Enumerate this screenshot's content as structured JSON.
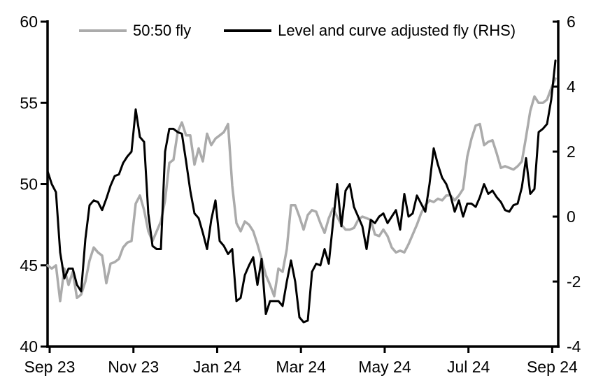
{
  "legend": {
    "series1": {
      "label": "50:50 fly"
    },
    "series2": {
      "label": "Level and curve adjusted fly (RHS)"
    }
  },
  "colors": {
    "background": "#ffffff",
    "axis": "#000000",
    "gray_series": "#ababab",
    "black_series": "#000000",
    "text": "#000000"
  },
  "chart_data": {
    "type": "line",
    "title": "",
    "xlabel": "",
    "ylabel_left": "",
    "ylabel_right": "",
    "grid": false,
    "legend_position": "top",
    "x_tick_labels": [
      "Sep 23",
      "Nov 23",
      "Jan 24",
      "Mar 24",
      "May 24",
      "Jul 24",
      "Sep 24"
    ],
    "left_axis": {
      "range": [
        40,
        60
      ],
      "ticks": [
        60,
        55,
        50,
        45,
        40
      ],
      "tick_labels": [
        "60",
        "55",
        "50",
        "45",
        "40"
      ]
    },
    "right_axis": {
      "range": [
        -4,
        6
      ],
      "ticks": [
        6,
        4,
        2,
        0,
        -2,
        -4
      ],
      "tick_labels": [
        "6",
        "4",
        "2",
        "0",
        "-2",
        "-4"
      ]
    },
    "series": [
      {
        "name": "50:50 fly",
        "axis": "left",
        "color": "#ababab",
        "stroke_width": 3.5,
        "values": [
          45.0,
          44.8,
          45.0,
          42.8,
          44.8,
          43.8,
          44.6,
          43.0,
          43.2,
          44.0,
          45.3,
          46.1,
          45.8,
          45.6,
          43.9,
          45.1,
          45.2,
          45.4,
          46.1,
          46.4,
          46.5,
          48.8,
          49.3,
          48.4,
          47.1,
          46.5,
          47.1,
          47.7,
          49.0,
          51.3,
          51.5,
          53.2,
          53.8,
          53.0,
          53.0,
          51.2,
          52.2,
          51.4,
          53.1,
          52.4,
          52.8,
          53.0,
          53.2,
          53.7,
          49.9,
          47.6,
          47.1,
          47.7,
          47.5,
          47.1,
          46.3,
          45.4,
          44.4,
          43.8,
          43.1,
          44.8,
          44.6,
          46.0,
          48.7,
          48.7,
          48.0,
          47.2,
          48.1,
          48.4,
          48.3,
          47.6,
          47.0,
          47.9,
          48.5,
          48.0,
          47.5,
          47.2,
          47.2,
          47.3,
          47.8,
          48.0,
          47.9,
          47.8,
          46.9,
          46.8,
          47.2,
          46.8,
          46.1,
          45.8,
          45.9,
          45.8,
          46.3,
          46.9,
          47.5,
          48.2,
          48.7,
          49.0,
          48.9,
          49.1,
          49.0,
          49.3,
          49.3,
          49.0,
          49.3,
          49.7,
          51.7,
          52.8,
          53.6,
          53.7,
          52.4,
          52.6,
          52.7,
          51.9,
          51.0,
          51.1,
          51.0,
          50.9,
          51.1,
          51.4,
          52.9,
          54.5,
          55.4,
          55.0,
          55.0,
          55.2,
          55.9,
          56.5
        ]
      },
      {
        "name": "Level and curve adjusted fly (RHS)",
        "axis": "right",
        "color": "#000000",
        "stroke_width": 3,
        "values": [
          1.4,
          1.0,
          0.75,
          -1.1,
          -1.9,
          -1.6,
          -1.6,
          -2.1,
          -2.3,
          -0.7,
          0.35,
          0.5,
          0.45,
          0.2,
          0.55,
          0.95,
          1.25,
          1.3,
          1.65,
          1.85,
          2.0,
          3.3,
          2.45,
          2.3,
          0.1,
          -0.9,
          -1.0,
          -1.0,
          2.0,
          2.7,
          2.7,
          2.6,
          2.55,
          1.7,
          0.8,
          0.1,
          -0.05,
          -0.5,
          -1.0,
          -0.1,
          0.5,
          -0.75,
          -0.9,
          -1.15,
          -1.0,
          -2.6,
          -2.5,
          -1.8,
          -1.5,
          -1.25,
          -2.1,
          -1.3,
          -3.0,
          -2.6,
          -2.6,
          -2.6,
          -2.75,
          -2.0,
          -1.35,
          -2.0,
          -3.1,
          -3.25,
          -3.2,
          -1.7,
          -1.45,
          -1.5,
          -1.0,
          -1.45,
          -0.2,
          1.0,
          -0.3,
          0.8,
          1.0,
          0.3,
          0.0,
          -0.3,
          -1.0,
          -0.1,
          -0.2,
          0.0,
          0.1,
          -0.2,
          0.0,
          0.2,
          -0.4,
          0.7,
          0.0,
          0.1,
          0.65,
          0.4,
          0.15,
          1.0,
          2.1,
          1.6,
          1.2,
          1.0,
          0.65,
          0.15,
          0.5,
          0.0,
          0.4,
          0.4,
          0.3,
          0.6,
          1.0,
          0.7,
          0.8,
          0.6,
          0.45,
          0.2,
          0.15,
          0.35,
          0.4,
          0.9,
          1.8,
          0.7,
          0.85,
          2.6,
          2.7,
          2.85,
          3.6,
          4.8
        ]
      }
    ]
  }
}
